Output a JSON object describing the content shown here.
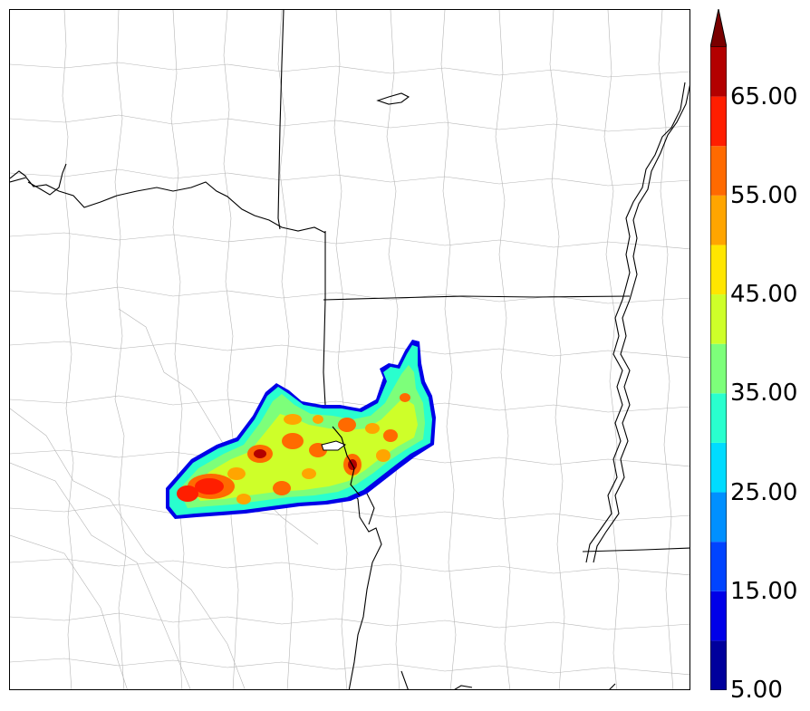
{
  "colorbar": {
    "tick_labels": [
      "5.00",
      "15.00",
      "25.00",
      "35.00",
      "45.00",
      "55.00",
      "65.00"
    ],
    "tick_values": [
      5,
      15,
      25,
      35,
      45,
      55,
      65
    ],
    "min": 5,
    "max": 70,
    "bin_width": 5,
    "extend": "max",
    "bins": [
      {
        "lo": 5,
        "color": "#00009c"
      },
      {
        "lo": 10,
        "color": "#0000e8"
      },
      {
        "lo": 15,
        "color": "#0044ff"
      },
      {
        "lo": 20,
        "color": "#0090ff"
      },
      {
        "lo": 25,
        "color": "#00dcff"
      },
      {
        "lo": 30,
        "color": "#29ffce"
      },
      {
        "lo": 35,
        "color": "#7dff7a"
      },
      {
        "lo": 40,
        "color": "#ceff29"
      },
      {
        "lo": 45,
        "color": "#ffe600"
      },
      {
        "lo": 50,
        "color": "#ffa500"
      },
      {
        "lo": 55,
        "color": "#ff6a00"
      },
      {
        "lo": 60,
        "color": "#ff1e00"
      },
      {
        "lo": 65,
        "color": "#b30000"
      }
    ],
    "extend_color": "#7a0000"
  },
  "map": {
    "background": "#ffffff",
    "boundary_color": "#000000",
    "county_color": "#b5b5b5"
  }
}
